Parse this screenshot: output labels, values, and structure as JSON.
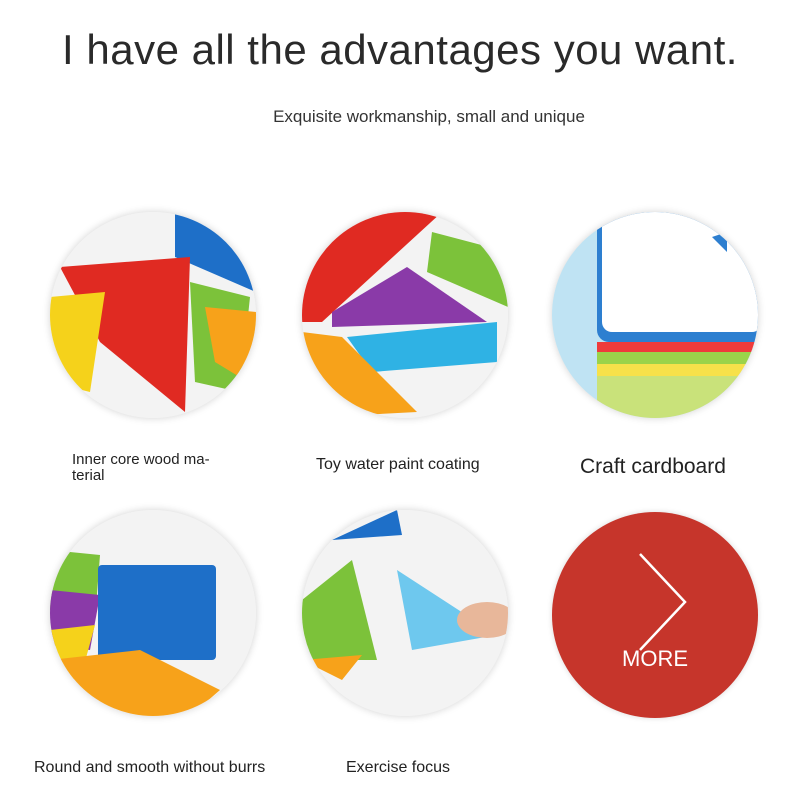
{
  "header": {
    "title": "I have all the advantages you want.",
    "subtitle": "Exquisite workmanship, small and unique"
  },
  "features": [
    {
      "label": "Inner core wood ma-\nterial"
    },
    {
      "label": "Toy water paint coating"
    },
    {
      "label": "Craft cardboard"
    },
    {
      "label": "Round and smooth without burrs"
    },
    {
      "label": "Exercise focus"
    }
  ],
  "more_button": {
    "label": "MORE",
    "icon": "chevron-right-icon",
    "color": "#c6352b"
  }
}
